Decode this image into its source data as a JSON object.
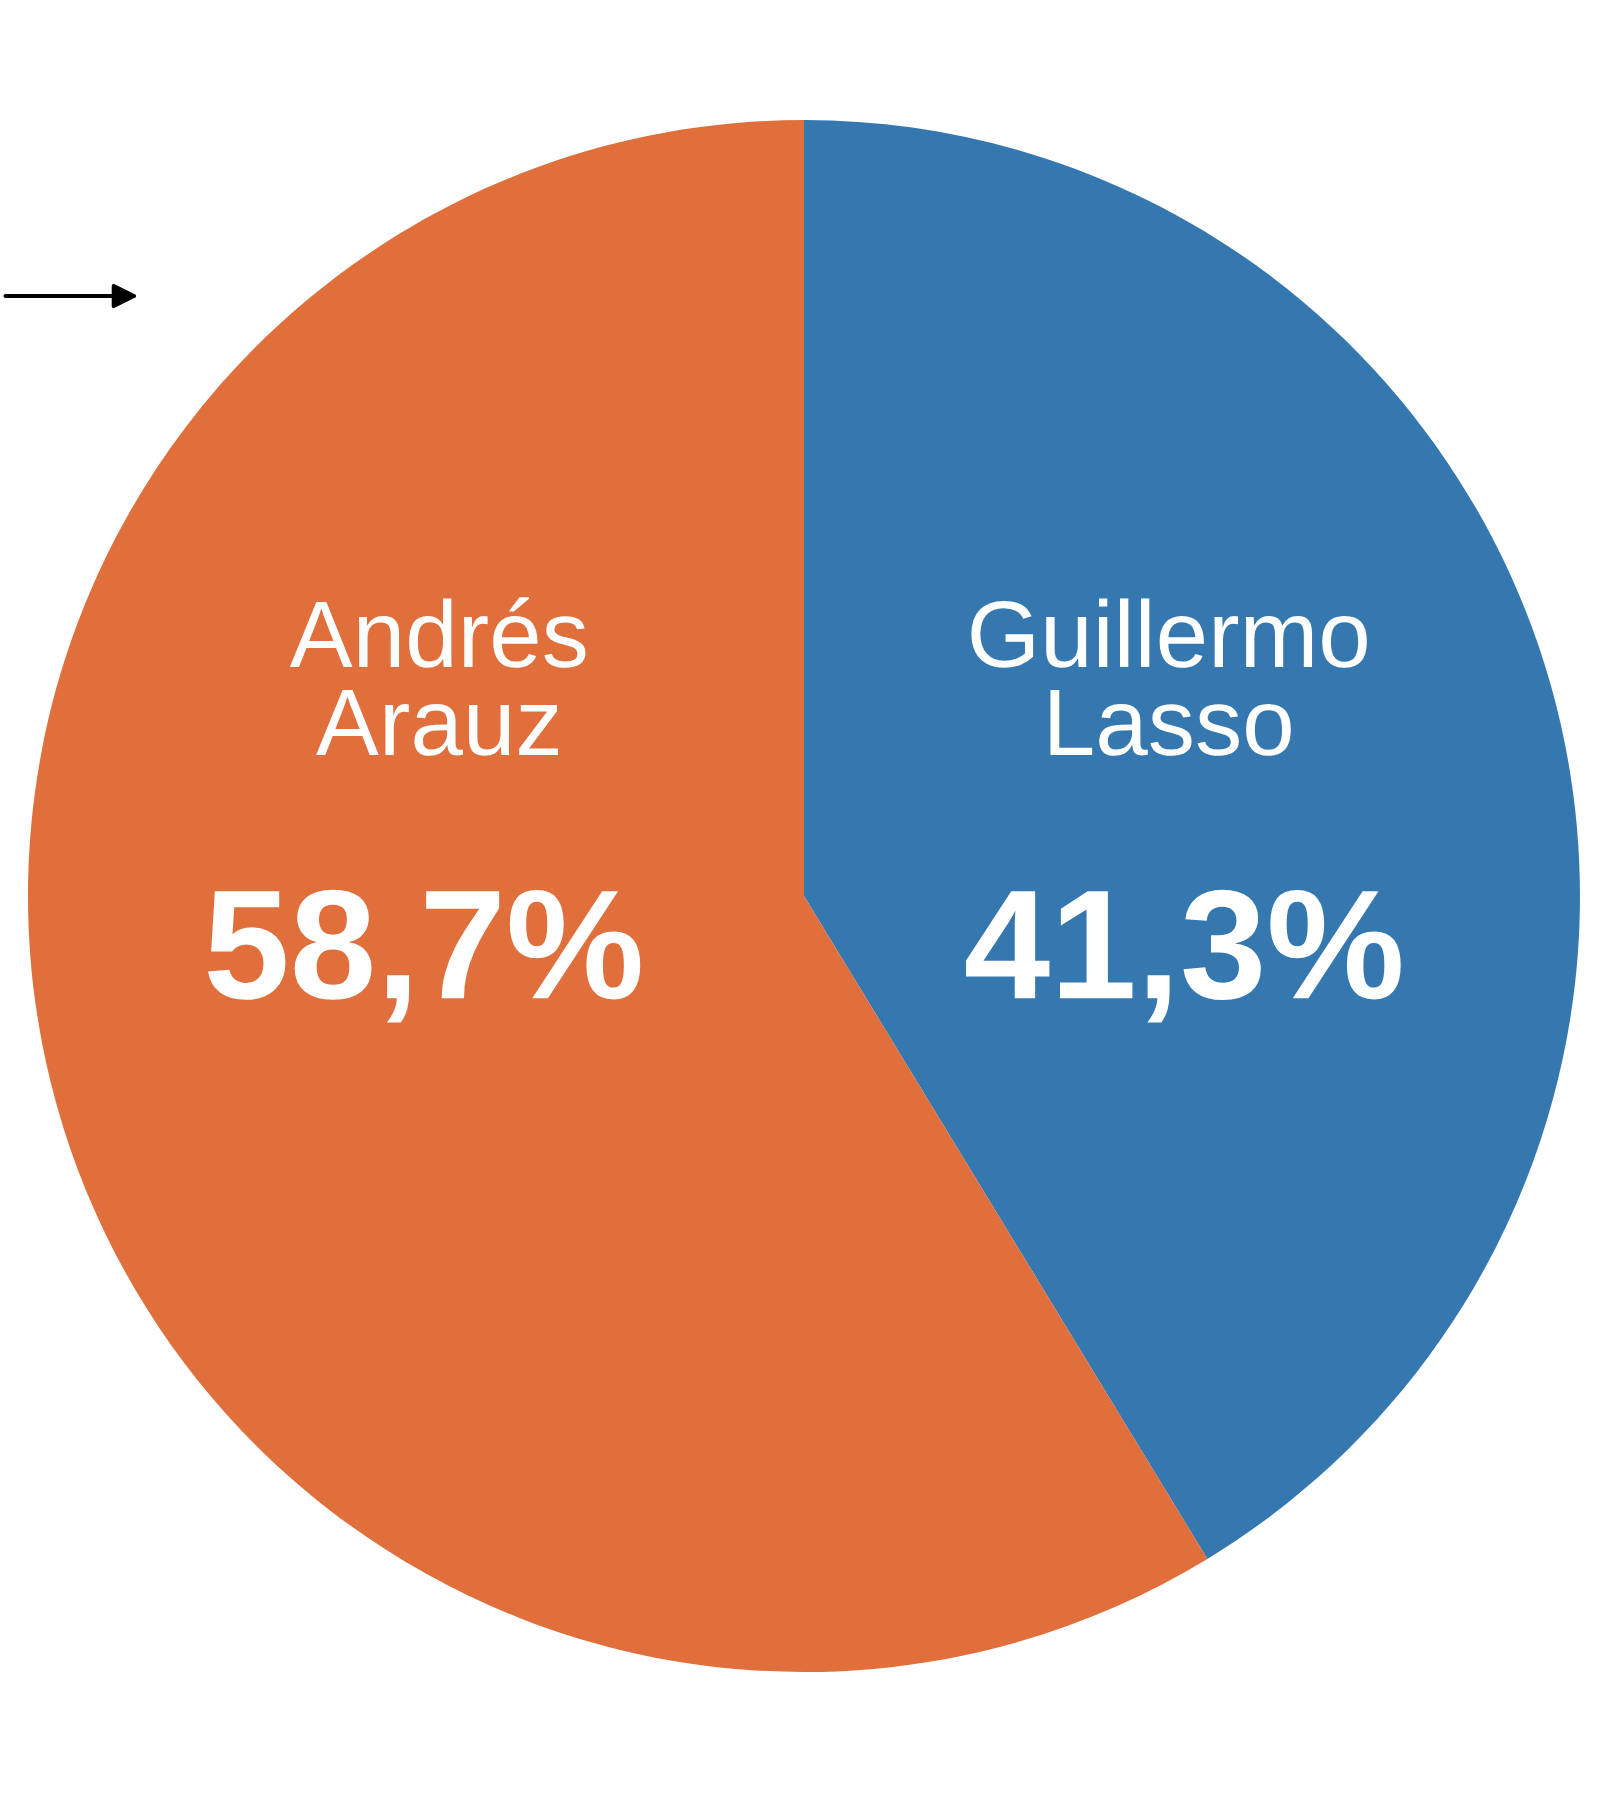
{
  "chart_data": {
    "type": "pie",
    "categories": [
      "Guillermo Lasso",
      "Andrés Arauz"
    ],
    "values": [
      41.3,
      58.7
    ],
    "colors": [
      "#3578b0",
      "#e06f3c"
    ],
    "value_labels": [
      "41,3%",
      "58,7%"
    ]
  }
}
